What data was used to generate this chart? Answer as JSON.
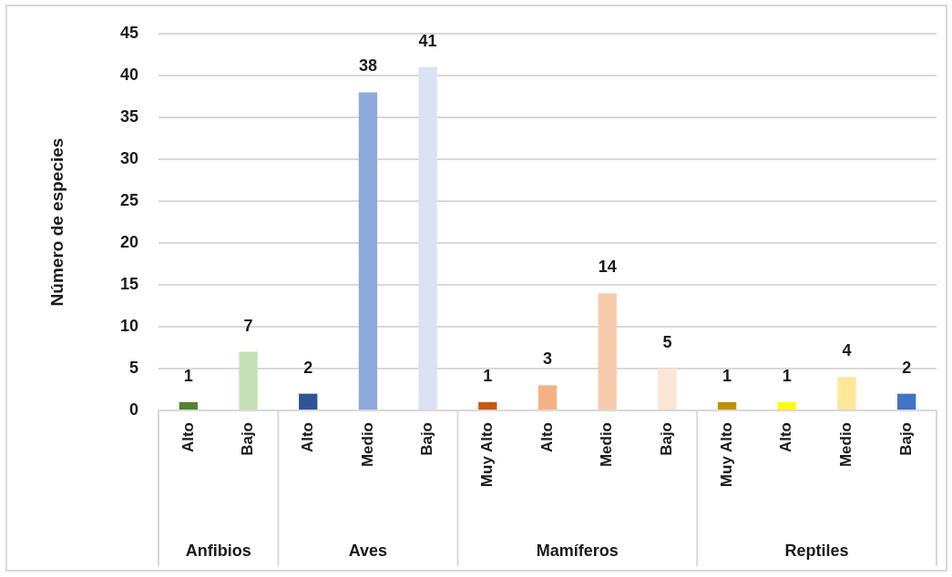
{
  "chart_data": {
    "type": "bar",
    "ylabel": "Número de especies",
    "categories": [
      "Alto",
      "Bajo",
      "Alto",
      "Medio",
      "Bajo",
      "Muy Alto",
      "Alto",
      "Medio",
      "Bajo",
      "Muy Alto",
      "Alto",
      "Medio",
      "Bajo"
    ],
    "series": [
      {
        "values": [
          1,
          7,
          null,
          null,
          null,
          null,
          null,
          null,
          null,
          null,
          null,
          null,
          null
        ],
        "colors": [
          "#548235",
          "#c5e0b4",
          null,
          null,
          null,
          null,
          null,
          null,
          null,
          null,
          null,
          null,
          null
        ]
      },
      {
        "values": [
          null,
          null,
          2,
          38,
          41,
          null,
          null,
          null,
          null,
          null,
          null,
          null,
          null
        ],
        "colors": [
          null,
          null,
          "#2f5597",
          "#8faadc",
          "#dae3f3",
          null,
          null,
          null,
          null,
          null,
          null,
          null,
          null
        ]
      },
      {
        "values": [
          null,
          null,
          null,
          null,
          null,
          1,
          3,
          14,
          5,
          null,
          null,
          null,
          null
        ],
        "colors": [
          null,
          null,
          null,
          null,
          null,
          "#c55a11",
          "#f4b183",
          "#f8cbad",
          "#fbe5d6",
          null,
          null,
          null,
          null
        ]
      },
      {
        "values": [
          null,
          null,
          null,
          null,
          null,
          null,
          null,
          null,
          null,
          1,
          1,
          4,
          2
        ],
        "colors": [
          null,
          null,
          null,
          null,
          null,
          null,
          null,
          null,
          null,
          "#bf9000",
          "#ffff00",
          "#ffe699",
          "#4472c4"
        ]
      }
    ],
    "annotations": [
      "Anfibios",
      "Aves",
      "Mamíferos",
      "Reptiles"
    ],
    "ylim": [
      0,
      45
    ],
    "yticks": [
      0,
      5,
      10,
      15,
      20,
      25,
      30,
      35,
      40,
      45
    ],
    "grid": "y",
    "data_labels": true
  }
}
